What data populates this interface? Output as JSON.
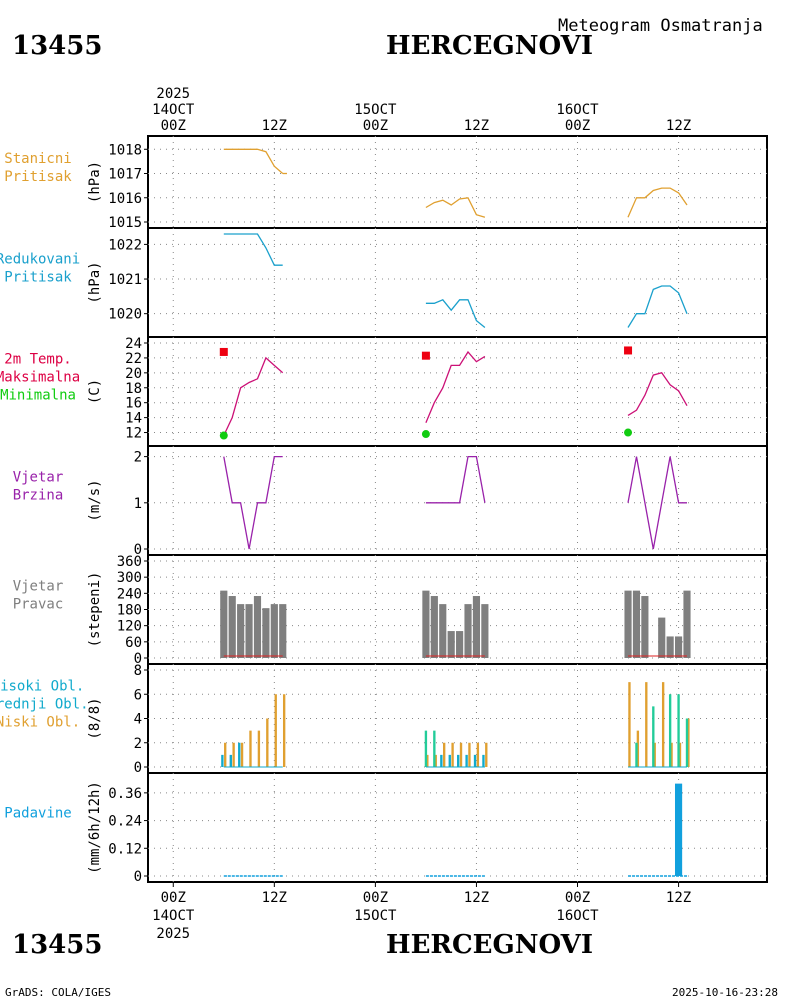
{
  "header": {
    "station_id": "13455",
    "station_name": "HERCEGNOVI",
    "subtitle": "Meteogram Osmatranja"
  },
  "footer": {
    "station_id": "13455",
    "station_name": "HERCEGNOVI",
    "credit": "GrADS: COLA/IGES",
    "timestamp": "2025-10-16-23:28"
  },
  "time_axis": {
    "year": "2025",
    "top_labels": [
      {
        "hour": 0,
        "text": "00Z",
        "date": "14OCT",
        "year": "2025"
      },
      {
        "hour": 12,
        "text": "12Z"
      },
      {
        "hour": 24,
        "text": "00Z",
        "date": "15OCT"
      },
      {
        "hour": 36,
        "text": "12Z"
      },
      {
        "hour": 48,
        "text": "00Z",
        "date": "16OCT"
      },
      {
        "hour": 60,
        "text": "12Z"
      }
    ],
    "range_hours": [
      -3,
      70.5
    ]
  },
  "chart_data": [
    {
      "type": "line",
      "panel": "pressure_station",
      "label_lines": [
        "Stanicni",
        "Pritisak"
      ],
      "unit": "(hPa)",
      "color": "#e0a030",
      "ylim": [
        1015,
        1018.3
      ],
      "yticks": [
        1015,
        1016,
        1017,
        1018
      ],
      "series": [
        {
          "name": "day14",
          "x": [
            6,
            7,
            8,
            9,
            10,
            11,
            12,
            13
          ],
          "y": [
            1018,
            1018,
            1018,
            1018,
            1018,
            1017.9,
            1017.3,
            1017
          ]
        },
        {
          "name": "day14b",
          "x": [
            13,
            13.5
          ],
          "y": [
            1017,
            1017
          ]
        },
        {
          "name": "day15",
          "x": [
            30,
            31,
            32,
            33,
            34,
            35,
            36,
            37
          ],
          "y": [
            1015.6,
            1015.8,
            1015.9,
            1015.7,
            1015.95,
            1016,
            1015.3,
            1015.2
          ]
        },
        {
          "name": "day16",
          "x": [
            54,
            55,
            56,
            57,
            58,
            59,
            60,
            61
          ],
          "y": [
            1015.2,
            1016,
            1016,
            1016.3,
            1016.4,
            1016.4,
            1016.2,
            1015.7
          ]
        }
      ]
    },
    {
      "type": "line",
      "panel": "pressure_reduced",
      "label_lines": [
        "Redukovani",
        "Pritisak"
      ],
      "unit": "(hPa)",
      "color": "#1aa0cc",
      "ylim": [
        1019.5,
        1022.3
      ],
      "yticks": [
        1020,
        1021,
        1022
      ],
      "series": [
        {
          "name": "day14",
          "x": [
            6,
            7,
            8,
            9,
            10,
            11,
            12,
            13
          ],
          "y": [
            1022.3,
            1022.3,
            1022.3,
            1022.3,
            1022.3,
            1021.9,
            1021.4,
            1021.4
          ]
        },
        {
          "name": "day15",
          "x": [
            30,
            31,
            32,
            33,
            34,
            35,
            36,
            37
          ],
          "y": [
            1020.3,
            1020.3,
            1020.4,
            1020.1,
            1020.4,
            1020.4,
            1019.8,
            1019.6
          ]
        },
        {
          "name": "day16",
          "x": [
            54,
            55,
            56,
            57,
            58,
            59,
            60,
            61
          ],
          "y": [
            1019.6,
            1020,
            1020,
            1020.7,
            1020.8,
            1020.8,
            1020.6,
            1020
          ]
        }
      ]
    },
    {
      "type": "line",
      "panel": "temperature",
      "label_lines": [
        "2m Temp.",
        "Maksimalna",
        "Minimalna"
      ],
      "label_colors": [
        "#dd0044",
        "#dd0044",
        "#11cc11"
      ],
      "unit": "(C)",
      "color": "#cc1177",
      "ylim": [
        11,
        24
      ],
      "yticks": [
        12,
        14,
        16,
        18,
        20,
        22,
        24
      ],
      "series": [
        {
          "name": "day14",
          "x": [
            6,
            7,
            8,
            9,
            10,
            11,
            12,
            13
          ],
          "y": [
            11.6,
            14,
            18,
            18.7,
            19.2,
            22,
            21,
            20
          ]
        },
        {
          "name": "day15",
          "x": [
            30,
            31,
            32,
            33,
            34,
            35,
            36,
            37
          ],
          "y": [
            13.3,
            16,
            18,
            21,
            21,
            22.8,
            21.5,
            22.2
          ]
        },
        {
          "name": "day16",
          "x": [
            54,
            55,
            56,
            57,
            58,
            59,
            60,
            61
          ],
          "y": [
            14.3,
            15,
            17,
            19.7,
            20,
            18.4,
            17.6,
            15.6
          ]
        }
      ],
      "max_points": {
        "x": [
          6,
          30,
          54
        ],
        "y": [
          22.8,
          22.3,
          23
        ]
      },
      "min_points": {
        "x": [
          6,
          30,
          54
        ],
        "y": [
          11.6,
          11.8,
          12
        ]
      }
    },
    {
      "type": "line",
      "panel": "wind_speed",
      "label_lines": [
        "Vjetar",
        "Brzina"
      ],
      "unit": "(m/s)",
      "color": "#9922aa",
      "ylim": [
        0,
        2.1
      ],
      "yticks": [
        0,
        1,
        2
      ],
      "series": [
        {
          "name": "day14",
          "x": [
            6,
            7,
            8,
            9,
            10,
            11,
            12,
            13
          ],
          "y": [
            2,
            1,
            1,
            0,
            1,
            1,
            2,
            2
          ]
        },
        {
          "name": "day15",
          "x": [
            30,
            31,
            32,
            33,
            34,
            35,
            36,
            37
          ],
          "y": [
            1,
            1,
            1,
            1,
            1,
            2,
            2,
            1
          ]
        },
        {
          "name": "day16",
          "x": [
            54,
            55,
            56,
            57,
            58,
            59,
            60,
            61
          ],
          "y": [
            1,
            2,
            1,
            0,
            1,
            2,
            1,
            1
          ]
        }
      ]
    },
    {
      "type": "bar",
      "panel": "wind_direction",
      "label_lines": [
        "Vjetar",
        "Pravac"
      ],
      "unit": "(stepeni)",
      "color": "#7f7f7f",
      "ylim": [
        0,
        360
      ],
      "yticks": [
        0,
        60,
        120,
        180,
        240,
        300,
        360
      ],
      "x": [
        6,
        7,
        8,
        9,
        10,
        11,
        12,
        13,
        30,
        31,
        32,
        33,
        34,
        35,
        36,
        37,
        54,
        55,
        56,
        57,
        58,
        59,
        60,
        61
      ],
      "values": [
        250,
        230,
        200,
        200,
        230,
        185,
        200,
        200,
        250,
        230,
        200,
        100,
        100,
        200,
        230,
        200,
        250,
        250,
        230,
        0,
        150,
        80,
        80,
        250
      ]
    },
    {
      "type": "bar",
      "panel": "clouds",
      "label_lines": [
        "Visoki Obl.",
        "Srednji Obl.",
        "Niski Obl."
      ],
      "label_colors": [
        "#11aacc",
        "#11aacc",
        "#e0a030"
      ],
      "unit": "(8/8)",
      "ylim": [
        0,
        8
      ],
      "yticks": [
        0,
        2,
        4,
        6,
        8
      ],
      "x": [
        6,
        7,
        8,
        9,
        10,
        11,
        12,
        13,
        30,
        31,
        32,
        33,
        34,
        35,
        36,
        37,
        54,
        55,
        56,
        57,
        58,
        59,
        60,
        61
      ],
      "series": [
        {
          "name": "Niski",
          "color": "#e0a030",
          "values": [
            2,
            2,
            2,
            3,
            3,
            4,
            6,
            6,
            1,
            1,
            2,
            2,
            2,
            2,
            2,
            2,
            7,
            3,
            7,
            2,
            7,
            2,
            2,
            4
          ]
        },
        {
          "name": "Srednji",
          "color": "#22cc99",
          "values": [
            0,
            0,
            0,
            0,
            0,
            0,
            0,
            0,
            3,
            3,
            0,
            0,
            0,
            0,
            0,
            0,
            0,
            2,
            0,
            5,
            0,
            6,
            6,
            4
          ]
        },
        {
          "name": "Visoki",
          "color": "#11aacc",
          "values": [
            1,
            1,
            2,
            0,
            0,
            0,
            0,
            0,
            0,
            0,
            1,
            1,
            1,
            1,
            1,
            1,
            0,
            0,
            0,
            0,
            0,
            0,
            0,
            0
          ]
        }
      ]
    },
    {
      "type": "bar",
      "panel": "precipitation",
      "label_lines": [
        "Padavine"
      ],
      "unit": "(mm/6h/12h)",
      "color": "#11a0dd",
      "ylim": [
        0,
        0.42
      ],
      "yticks": [
        0,
        0.12,
        0.24,
        0.36
      ],
      "ytick_labels": [
        "0",
        "0.12",
        "0.24",
        "0.36"
      ],
      "x": [
        60
      ],
      "values": [
        0.4
      ],
      "trace_segments": [
        [
          6,
          13
        ],
        [
          30,
          37
        ],
        [
          54,
          61
        ]
      ]
    }
  ]
}
